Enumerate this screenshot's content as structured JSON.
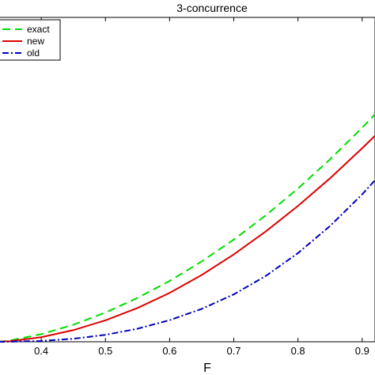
{
  "chart_data": {
    "type": "line",
    "title": "3-concurrence",
    "xlabel": "F",
    "ylabel": "",
    "xlim": [
      0.3333,
      0.92
    ],
    "ylim": [
      0,
      0.44
    ],
    "xticks": [
      0.4,
      0.5,
      0.6,
      0.7,
      0.8,
      0.9
    ],
    "xtick_labels": [
      "0.4",
      "0.5",
      "0.6",
      "0.7",
      "0.8",
      "0.9"
    ],
    "grid": false,
    "legend_position": "top-left",
    "series": [
      {
        "name": "exact",
        "color": "#00dd00",
        "style": "dashed",
        "x": [
          0.3333,
          0.35,
          0.4,
          0.45,
          0.5,
          0.55,
          0.6,
          0.65,
          0.7,
          0.75,
          0.8,
          0.85,
          0.9,
          0.92
        ],
        "y": [
          0.0,
          0.0015,
          0.0103,
          0.0231,
          0.0396,
          0.0595,
          0.0825,
          0.1089,
          0.1386,
          0.1716,
          0.2079,
          0.2475,
          0.2904,
          0.3086
        ]
      },
      {
        "name": "new",
        "color": "#dd0000",
        "style": "solid",
        "x": [
          0.3333,
          0.35,
          0.4,
          0.45,
          0.5,
          0.55,
          0.6,
          0.65,
          0.7,
          0.75,
          0.8,
          0.85,
          0.9,
          0.92
        ],
        "y": [
          0.0,
          0.0007,
          0.0062,
          0.0158,
          0.0291,
          0.0458,
          0.0663,
          0.0906,
          0.1185,
          0.1498,
          0.1843,
          0.2218,
          0.2625,
          0.2795
        ]
      },
      {
        "name": "old",
        "color": "#0000bb",
        "style": "dashdot",
        "x": [
          0.3333,
          0.35,
          0.4,
          0.45,
          0.5,
          0.55,
          0.6,
          0.65,
          0.7,
          0.75,
          0.8,
          0.85,
          0.9,
          0.92
        ],
        "y": [
          0.0,
          0.0001,
          0.0011,
          0.0041,
          0.0094,
          0.0177,
          0.0293,
          0.0446,
          0.0643,
          0.0894,
          0.1203,
          0.1571,
          0.1999,
          0.2192
        ]
      }
    ]
  }
}
